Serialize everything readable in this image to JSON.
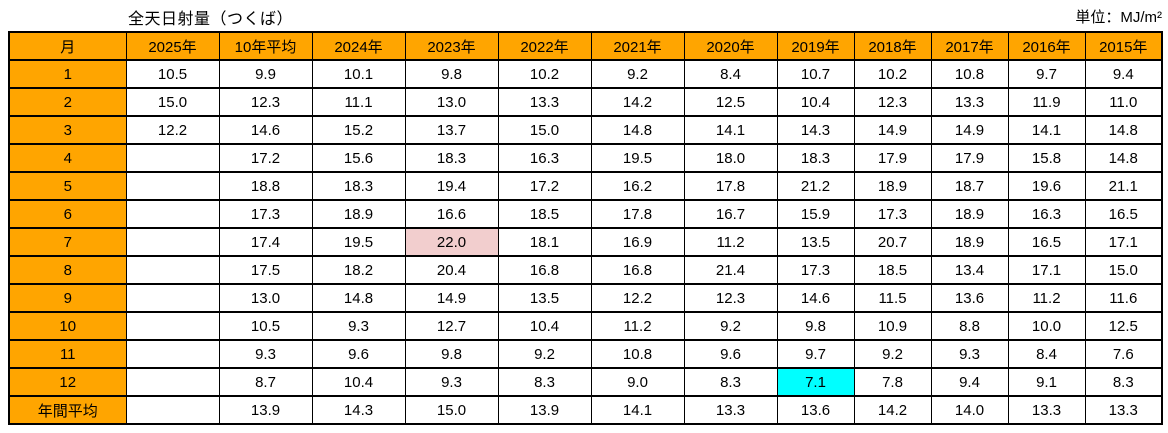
{
  "title": "全天日射量（つくば）",
  "unit_label": "単位：MJ/m²",
  "colors": {
    "header_bg": "#FFA500",
    "max_value_text": "#FF0000",
    "min_value_text": "#0000FF",
    "min_value_text_regular": "#3333FF",
    "gray_value_text": "#909090",
    "highlight_max_bg": "#F2CECE",
    "highlight_min_bg": "#00FFFF",
    "border": "#000000"
  },
  "chart_data": {
    "type": "table",
    "title": "全天日射量（つくば）",
    "unit": "MJ/m²",
    "columns": [
      "月",
      "2025年",
      "10年平均",
      "2024年",
      "2023年",
      "2022年",
      "2021年",
      "2020年",
      "2019年",
      "2018年",
      "2017年",
      "2016年",
      "2015年"
    ],
    "rows": [
      {
        "label": "1",
        "cells": [
          {
            "v": "10.5"
          },
          {
            "v": "9.9"
          },
          {
            "v": "10.1"
          },
          {
            "v": "9.8"
          },
          {
            "v": "10.2"
          },
          {
            "v": "9.2"
          },
          {
            "v": "8.4",
            "c": "blue"
          },
          {
            "v": "10.7"
          },
          {
            "v": "10.2"
          },
          {
            "v": "10.8",
            "c": "red"
          },
          {
            "v": "9.7"
          },
          {
            "v": "9.4"
          }
        ]
      },
      {
        "label": "2",
        "cells": [
          {
            "v": "15.0",
            "c": "red"
          },
          {
            "v": "12.3"
          },
          {
            "v": "11.1"
          },
          {
            "v": "13.0"
          },
          {
            "v": "13.3"
          },
          {
            "v": "14.2",
            "c": "red"
          },
          {
            "v": "12.5"
          },
          {
            "v": "10.4",
            "c": "blue"
          },
          {
            "v": "12.3"
          },
          {
            "v": "13.3"
          },
          {
            "v": "11.9"
          },
          {
            "v": "11.0"
          }
        ]
      },
      {
        "label": "3",
        "cells": [
          {
            "v": "12.2",
            "c": "blue"
          },
          {
            "v": "14.6"
          },
          {
            "v": "15.2",
            "c": "red"
          },
          {
            "v": "13.7",
            "c": "blue"
          },
          {
            "v": "15.0"
          },
          {
            "v": "14.8"
          },
          {
            "v": "14.1"
          },
          {
            "v": "14.3"
          },
          {
            "v": "14.9"
          },
          {
            "v": "14.9"
          },
          {
            "v": "14.1",
            "c": "bluereg"
          },
          {
            "v": "14.8"
          }
        ]
      },
      {
        "label": "4",
        "cells": [
          {
            "v": ""
          },
          {
            "v": "17.2"
          },
          {
            "v": "15.6"
          },
          {
            "v": "18.3"
          },
          {
            "v": "16.3"
          },
          {
            "v": "19.5",
            "c": "red"
          },
          {
            "v": "18.0"
          },
          {
            "v": "18.3"
          },
          {
            "v": "17.9"
          },
          {
            "v": "17.9"
          },
          {
            "v": "15.8"
          },
          {
            "v": "14.8",
            "c": "blue"
          }
        ]
      },
      {
        "label": "5",
        "cells": [
          {
            "v": ""
          },
          {
            "v": "18.8"
          },
          {
            "v": "18.3"
          },
          {
            "v": "19.4"
          },
          {
            "v": "17.2"
          },
          {
            "v": "16.2",
            "c": "blue"
          },
          {
            "v": "17.8"
          },
          {
            "v": "21.2",
            "c": "red"
          },
          {
            "v": "18.9"
          },
          {
            "v": "18.7"
          },
          {
            "v": "19.6"
          },
          {
            "v": "21.1"
          }
        ]
      },
      {
        "label": "6",
        "cells": [
          {
            "v": ""
          },
          {
            "v": "17.3"
          },
          {
            "v": "18.9",
            "c": "red"
          },
          {
            "v": "16.6"
          },
          {
            "v": "18.5"
          },
          {
            "v": "17.8"
          },
          {
            "v": "16.7"
          },
          {
            "v": "15.9",
            "c": "blue"
          },
          {
            "v": "17.3"
          },
          {
            "v": "18.9",
            "c": "red"
          },
          {
            "v": "16.3"
          },
          {
            "v": "16.5"
          }
        ]
      },
      {
        "label": "7",
        "cells": [
          {
            "v": ""
          },
          {
            "v": "17.4"
          },
          {
            "v": "19.5"
          },
          {
            "v": "22.0",
            "c": "red",
            "bg": "pink"
          },
          {
            "v": "18.1"
          },
          {
            "v": "16.9"
          },
          {
            "v": "11.2",
            "c": "blue"
          },
          {
            "v": "13.5"
          },
          {
            "v": "20.7"
          },
          {
            "v": "18.9"
          },
          {
            "v": "16.5"
          },
          {
            "v": "17.1"
          }
        ]
      },
      {
        "label": "8",
        "cells": [
          {
            "v": ""
          },
          {
            "v": "17.5"
          },
          {
            "v": "18.2"
          },
          {
            "v": "20.4"
          },
          {
            "v": "16.8"
          },
          {
            "v": "16.8"
          },
          {
            "v": "21.4",
            "c": "red"
          },
          {
            "v": "17.3"
          },
          {
            "v": "18.5"
          },
          {
            "v": "13.4",
            "c": "blue"
          },
          {
            "v": "17.1"
          },
          {
            "v": "15.0"
          }
        ]
      },
      {
        "label": "9",
        "cells": [
          {
            "v": ""
          },
          {
            "v": "13.0"
          },
          {
            "v": "14.8"
          },
          {
            "v": "14.9",
            "c": "red"
          },
          {
            "v": "13.5"
          },
          {
            "v": "12.2"
          },
          {
            "v": "12.3"
          },
          {
            "v": "14.6"
          },
          {
            "v": "11.5"
          },
          {
            "v": "13.6"
          },
          {
            "v": "11.2",
            "c": "blue"
          },
          {
            "v": "11.6"
          }
        ]
      },
      {
        "label": "10",
        "cells": [
          {
            "v": ""
          },
          {
            "v": "10.5"
          },
          {
            "v": "9.3"
          },
          {
            "v": "12.7",
            "c": "red"
          },
          {
            "v": "10.4"
          },
          {
            "v": "11.2"
          },
          {
            "v": "9.2"
          },
          {
            "v": "9.8"
          },
          {
            "v": "10.9"
          },
          {
            "v": "8.8",
            "c": "blue"
          },
          {
            "v": "10.0"
          },
          {
            "v": "12.5"
          }
        ]
      },
      {
        "label": "11",
        "cells": [
          {
            "v": ""
          },
          {
            "v": "9.3"
          },
          {
            "v": "9.6"
          },
          {
            "v": "9.8"
          },
          {
            "v": "9.2"
          },
          {
            "v": "10.8",
            "c": "red"
          },
          {
            "v": "9.6"
          },
          {
            "v": "9.7",
            "c": "gray"
          },
          {
            "v": "9.2"
          },
          {
            "v": "9.3"
          },
          {
            "v": "8.4"
          },
          {
            "v": "7.6",
            "c": "blue"
          }
        ]
      },
      {
        "label": "12",
        "cells": [
          {
            "v": ""
          },
          {
            "v": "8.7"
          },
          {
            "v": "10.4",
            "c": "red"
          },
          {
            "v": "9.3"
          },
          {
            "v": "8.3"
          },
          {
            "v": "9.0"
          },
          {
            "v": "8.3"
          },
          {
            "v": "7.1",
            "c": "blue",
            "bg": "cyan"
          },
          {
            "v": "7.8"
          },
          {
            "v": "9.4",
            "c": "red"
          },
          {
            "v": "9.1"
          },
          {
            "v": "8.3"
          }
        ]
      },
      {
        "label": "年間平均",
        "cells": [
          {
            "v": ""
          },
          {
            "v": "13.9"
          },
          {
            "v": "14.3"
          },
          {
            "v": "15.0",
            "c": "red"
          },
          {
            "v": "13.9"
          },
          {
            "v": "14.1"
          },
          {
            "v": "13.3",
            "c": "blue"
          },
          {
            "v": "13.6"
          },
          {
            "v": "14.2"
          },
          {
            "v": "14.0"
          },
          {
            "v": "13.3",
            "c": "blue"
          },
          {
            "v": "13.3",
            "c": "blue"
          }
        ]
      }
    ]
  }
}
